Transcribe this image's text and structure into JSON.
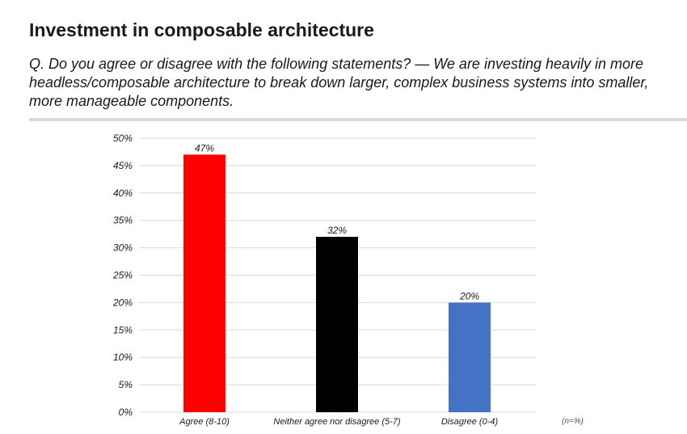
{
  "header": {
    "title": "Investment in composable architecture",
    "question": "Q. Do you agree or disagree with the following statements? — We are investing heavily in more headless/composable architecture to break down larger, complex business systems into smaller, more manageable components."
  },
  "chart_data": {
    "type": "bar",
    "categories": [
      "Agree (8-10)",
      "Neither agree nor disagree (5-7)",
      "Disagree (0-4)"
    ],
    "values": [
      47,
      32,
      20
    ],
    "value_labels": [
      "47%",
      "32%",
      "20%"
    ],
    "colors": [
      "#ff0000",
      "#000000",
      "#4472c4"
    ],
    "ylim": [
      0,
      50
    ],
    "yticks": [
      0,
      5,
      10,
      15,
      20,
      25,
      30,
      35,
      40,
      45,
      50
    ],
    "ytick_labels": [
      "0%",
      "5%",
      "10%",
      "15%",
      "20%",
      "25%",
      "30%",
      "35%",
      "40%",
      "45%",
      "50%"
    ],
    "grid": true,
    "note": "(n=%)"
  }
}
